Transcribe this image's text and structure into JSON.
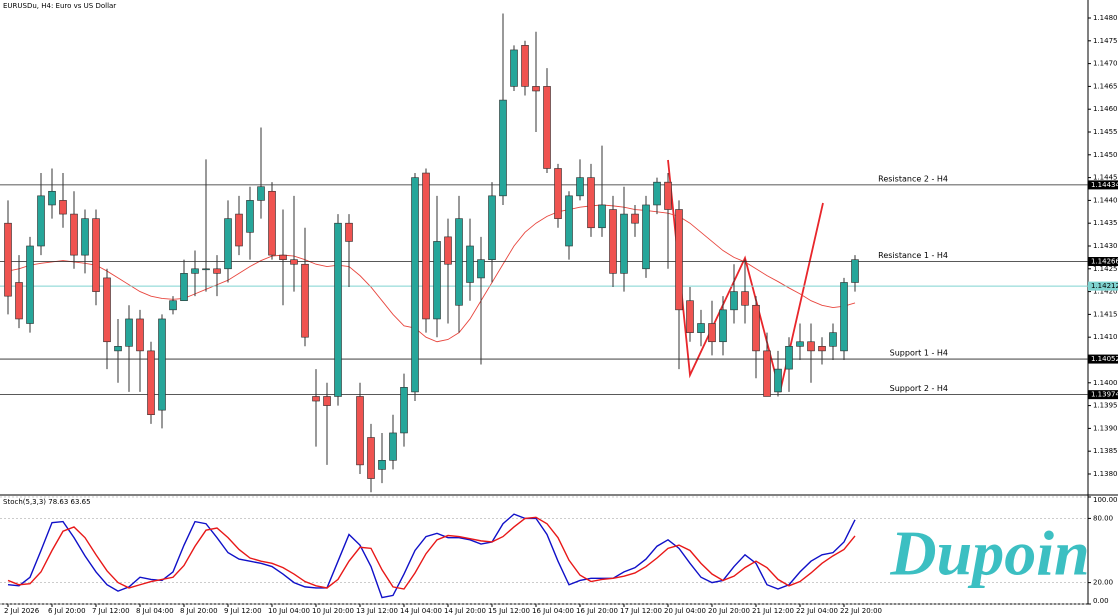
{
  "chart_data": [
    {
      "type": "candlestick",
      "title": "EURUSDu, H4:  Euro vs US Dollar",
      "categories": [
        "2 Jul 2026",
        null,
        null,
        null,
        "6 Jul 20:00",
        null,
        null,
        null,
        "7 Jul 12:00",
        null,
        null,
        null,
        "8 Jul 04:00",
        null,
        null,
        null,
        "8 Jul 20:00",
        null,
        null,
        null,
        "9 Jul 12:00",
        null,
        null,
        null,
        "10 Jul 04:00",
        null,
        null,
        null,
        "10 Jul 20:00",
        null,
        null,
        null,
        "13 Jul 12:00",
        null,
        null,
        null,
        "14 Jul 04:00",
        null,
        null,
        null,
        "14 Jul 20:00",
        null,
        null,
        null,
        "15 Jul 12:00",
        null,
        null,
        null,
        "16 Jul 04:00",
        null,
        null,
        null,
        "16 Jul 20:00",
        null,
        null,
        null,
        "17 Jul 12:00",
        null,
        null,
        null,
        "20 Jul 04:00",
        null,
        null,
        null,
        "20 Jul 20:00",
        null,
        null,
        null,
        "21 Jul 12:00",
        null,
        null,
        null,
        "22 Jul 04:00",
        null,
        null,
        null,
        "22 Jul 20:00",
        null
      ],
      "open": [
        1.1435,
        1.1422,
        1.1413,
        1.143,
        1.1439,
        1.144,
        1.1437,
        1.1428,
        1.1436,
        1.1423,
        1.1407,
        1.1408,
        1.1414,
        1.1407,
        1.1394,
        1.1416,
        1.1418,
        1.1424,
        1.1425,
        1.1425,
        1.1425,
        1.1437,
        1.1433,
        1.144,
        1.1442,
        1.1428,
        1.1427,
        1.1426,
        1.1397,
        1.1397,
        1.1397,
        1.1435,
        1.1397,
        1.1388,
        1.1381,
        1.1383,
        1.1389,
        1.1398,
        1.1446,
        1.1414,
        1.1432,
        1.1417,
        1.1422,
        1.1423,
        1.1427,
        1.1441,
        1.1465,
        1.1474,
        1.1465,
        1.1465,
        1.1447,
        1.143,
        1.1441,
        1.1445,
        1.1434,
        1.1438,
        1.1424,
        1.1437,
        1.1425,
        1.1439,
        1.1444,
        1.1438,
        1.1418,
        1.1411,
        1.1413,
        1.1409,
        1.1416,
        1.142,
        1.1417,
        1.1407,
        1.1398,
        1.1403,
        1.1408,
        1.1409,
        1.1408,
        1.1408,
        1.1407,
        1.1422
      ],
      "high": [
        1.144,
        1.1428,
        1.1432,
        1.1446,
        1.1447,
        1.1446,
        1.1442,
        1.1438,
        1.1438,
        1.1425,
        1.1414,
        1.1417,
        1.1416,
        1.1409,
        1.1415,
        1.1419,
        1.1427,
        1.1429,
        1.1449,
        1.1428,
        1.144,
        1.1441,
        1.1443,
        1.1456,
        1.1444,
        1.1438,
        1.1441,
        1.1434,
        1.1403,
        1.14,
        1.1437,
        1.1437,
        1.14,
        1.1391,
        1.1389,
        1.1393,
        1.1402,
        1.1446,
        1.1447,
        1.1441,
        1.1436,
        1.1441,
        1.1436,
        1.1432,
        1.1444,
        1.1481,
        1.1474,
        1.1475,
        1.1477,
        1.1469,
        1.1448,
        1.1442,
        1.1449,
        1.1448,
        1.1452,
        1.1441,
        1.1443,
        1.1439,
        1.1441,
        1.1445,
        1.1446,
        1.144,
        1.1421,
        1.1416,
        1.1418,
        1.1419,
        1.1426,
        1.1427,
        1.1419,
        1.1411,
        1.1407,
        1.141,
        1.1413,
        1.1413,
        1.141,
        1.1413,
        1.1423,
        1.1428
      ],
      "low": [
        1.1415,
        1.1412,
        1.1411,
        1.1428,
        1.1436,
        1.1434,
        1.1425,
        1.1424,
        1.1417,
        1.1403,
        1.14,
        1.1398,
        1.1398,
        1.1391,
        1.139,
        1.1415,
        1.1418,
        1.1419,
        1.142,
        1.1419,
        1.1422,
        1.1428,
        1.1427,
        1.1436,
        1.1427,
        1.1417,
        1.142,
        1.1408,
        1.1386,
        1.1382,
        1.1395,
        1.1421,
        1.138,
        1.1376,
        1.1378,
        1.1381,
        1.1386,
        1.1396,
        1.1411,
        1.141,
        1.1413,
        1.1411,
        1.1418,
        1.1404,
        1.1422,
        1.1439,
        1.1464,
        1.1463,
        1.1455,
        1.1446,
        1.1434,
        1.1427,
        1.144,
        1.1432,
        1.1432,
        1.1421,
        1.142,
        1.1432,
        1.1423,
        1.1437,
        1.1425,
        1.1403,
        1.1409,
        1.1408,
        1.1406,
        1.1406,
        1.1413,
        1.1413,
        1.1401,
        1.1397,
        1.1397,
        1.1398,
        1.1405,
        1.14,
        1.1404,
        1.1405,
        1.1405,
        1.142
      ],
      "close": [
        1.1419,
        1.1414,
        1.143,
        1.1441,
        1.1442,
        1.1437,
        1.1428,
        1.1436,
        1.142,
        1.1409,
        1.1408,
        1.1414,
        1.1407,
        1.1393,
        1.1414,
        1.1418,
        1.1424,
        1.1425,
        1.1425,
        1.1424,
        1.1436,
        1.143,
        1.144,
        1.1443,
        1.1428,
        1.1427,
        1.1426,
        1.141,
        1.1396,
        1.1395,
        1.1435,
        1.1431,
        1.1382,
        1.1379,
        1.1383,
        1.1389,
        1.1399,
        1.1445,
        1.1414,
        1.1431,
        1.1426,
        1.1436,
        1.143,
        1.1427,
        1.1441,
        1.1462,
        1.1473,
        1.1465,
        1.1464,
        1.1447,
        1.1436,
        1.1441,
        1.1445,
        1.1434,
        1.1439,
        1.1424,
        1.1437,
        1.1435,
        1.1439,
        1.1444,
        1.1438,
        1.1416,
        1.1411,
        1.1413,
        1.1409,
        1.1416,
        1.142,
        1.1417,
        1.1407,
        1.1397,
        1.1403,
        1.1408,
        1.1409,
        1.1407,
        1.1407,
        1.1411,
        1.1422,
        1.1427
      ],
      "up_color": "#26a69a",
      "down_color": "#ef5350",
      "ma_color": "#e8473f",
      "ma_values": [
        1.14245,
        1.1425,
        1.14258,
        1.14262,
        1.14265,
        1.14268,
        1.14265,
        1.14262,
        1.14258,
        1.14245,
        1.1423,
        1.14215,
        1.142,
        1.1419,
        1.14185,
        1.14183,
        1.14185,
        1.14195,
        1.14205,
        1.14215,
        1.14225,
        1.1424,
        1.14255,
        1.14268,
        1.14278,
        1.1428,
        1.14278,
        1.1427,
        1.1426,
        1.14255,
        1.14258,
        1.14255,
        1.14235,
        1.1421,
        1.1418,
        1.1415,
        1.14125,
        1.1412,
        1.141,
        1.1409,
        1.14095,
        1.1411,
        1.1414,
        1.1418,
        1.1422,
        1.1426,
        1.143,
        1.1433,
        1.1435,
        1.14365,
        1.14375,
        1.1438,
        1.14385,
        1.14388,
        1.1439,
        1.14388,
        1.14385,
        1.1438,
        1.14378,
        1.14375,
        1.14372,
        1.14365,
        1.1435,
        1.1433,
        1.1431,
        1.1429,
        1.14275,
        1.14265,
        1.1425,
        1.14235,
        1.14222,
        1.14208,
        1.14195,
        1.1418,
        1.1417,
        1.14165,
        1.14168,
        1.14175
      ],
      "ylim": [
        1.137561,
        1.148395
      ],
      "yticks": [
        {
          "value": 1.138,
          "label": "1.13800"
        },
        {
          "value": 1.1385,
          "label": "1.13850"
        },
        {
          "value": 1.139,
          "label": "1.13900"
        },
        {
          "value": 1.1395,
          "label": "1.13950"
        },
        {
          "value": 1.14,
          "label": "1.14000"
        },
        {
          "value": 1.1405,
          "label": "1.14050"
        },
        {
          "value": 1.141,
          "label": "1.14100"
        },
        {
          "value": 1.1415,
          "label": "1.14150"
        },
        {
          "value": 1.142,
          "label": "1.14200"
        },
        {
          "value": 1.1425,
          "label": "1.14250"
        },
        {
          "value": 1.143,
          "label": "1.14300"
        },
        {
          "value": 1.1435,
          "label": "1.14350"
        },
        {
          "value": 1.144,
          "label": "1.14400"
        },
        {
          "value": 1.1445,
          "label": "1.14450"
        },
        {
          "value": 1.145,
          "label": "1.14500"
        },
        {
          "value": 1.1455,
          "label": "1.14550"
        },
        {
          "value": 1.146,
          "label": "1.14600"
        },
        {
          "value": 1.1465,
          "label": "1.14650"
        },
        {
          "value": 1.147,
          "label": "1.14700"
        },
        {
          "value": 1.1475,
          "label": "1.14750"
        },
        {
          "value": 1.148,
          "label": "1.14800"
        }
      ],
      "levels": [
        {
          "name": "Resistance 2 - H4",
          "value": 1.14434
        },
        {
          "name": "Resistance 1 - H4",
          "value": 1.14266
        },
        {
          "name": "Support 1 - H4",
          "value": 1.14052
        },
        {
          "name": "Support 2 - H4",
          "value": 1.13974
        }
      ],
      "price_line": 1.14212,
      "price_line_color": "#7fd3d0"
    },
    {
      "type": "line",
      "title": "Stoch(5,3,3) 78.63 63.65",
      "series": [
        {
          "color": "#1010c8",
          "values": [
            18,
            17,
            25,
            50,
            76,
            77,
            62,
            45,
            30,
            18,
            12,
            16,
            25,
            23,
            22,
            30,
            55,
            77,
            75,
            62,
            48,
            42,
            40,
            38,
            35,
            28,
            20,
            16,
            15,
            15,
            40,
            65,
            55,
            35,
            6,
            8,
            28,
            50,
            63,
            66,
            62,
            62,
            60,
            56,
            58,
            75,
            84,
            80,
            80,
            65,
            40,
            18,
            22,
            24,
            24,
            24,
            30,
            34,
            42,
            54,
            60,
            52,
            38,
            25,
            20,
            22,
            35,
            46,
            38,
            18,
            14,
            18,
            30,
            40,
            46,
            48,
            58,
            78.63
          ]
        },
        {
          "color": "#e81818",
          "values": [
            22,
            18,
            19,
            30,
            50,
            68,
            72,
            62,
            46,
            31,
            20,
            15,
            18,
            21,
            23,
            25,
            36,
            54,
            69,
            71,
            62,
            51,
            43,
            40,
            38,
            34,
            28,
            21,
            17,
            15,
            23,
            40,
            53,
            52,
            32,
            16,
            14,
            29,
            47,
            60,
            64,
            63,
            61,
            59,
            58,
            63,
            72,
            80,
            81,
            75,
            62,
            41,
            27,
            21,
            23,
            24,
            26,
            29,
            35,
            43,
            52,
            55,
            50,
            38,
            28,
            22,
            26,
            34,
            40,
            34,
            23,
            17,
            21,
            29,
            38,
            45,
            51,
            63.65
          ]
        }
      ],
      "ylim": [
        0,
        100
      ],
      "yticks": [
        {
          "value": 100,
          "label": "100.00"
        },
        {
          "value": 80,
          "label": "80.00"
        },
        {
          "value": 20,
          "label": "20.00"
        },
        {
          "value": 0,
          "label": "0.00"
        }
      ],
      "grid": true
    },
    {
      "type": "watermark",
      "title": "Dupoin",
      "color": "#3cbfc2"
    }
  ]
}
